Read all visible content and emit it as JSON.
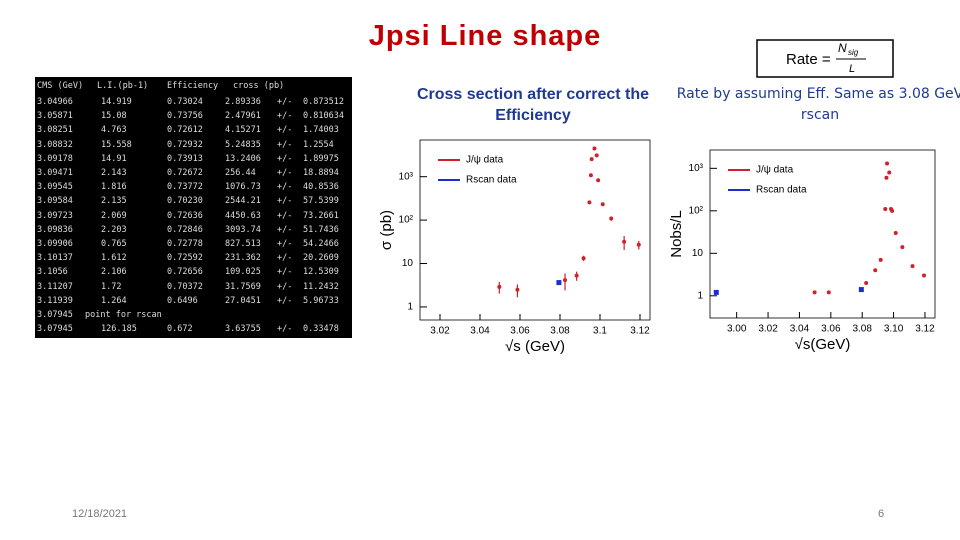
{
  "slide": {
    "title": "Jpsi Line shape",
    "date": "12/18/2021",
    "page": "6"
  },
  "formula": {
    "lhs": "Rate =",
    "numerator": "N",
    "numerator_sub": "sig",
    "denominator": "L"
  },
  "table": {
    "header": [
      "CMS (GeV)",
      "L.I.(pb-1)",
      "Efficiency",
      "cross (pb)"
    ],
    "rows": [
      [
        "3.04966",
        "14.919",
        "0.73024",
        "2.89336",
        "+/-",
        "0.873512"
      ],
      [
        "3.05871",
        "15.08",
        "0.73756",
        "2.47961",
        "+/-",
        "0.810634"
      ],
      [
        "3.08251",
        "4.763",
        "0.72612",
        "4.15271",
        "+/-",
        "1.74003"
      ],
      [
        "3.08832",
        "15.558",
        "0.72932",
        "5.24835",
        "+/-",
        "1.2554"
      ],
      [
        "3.09178",
        "14.91",
        "0.73913",
        "13.2406",
        "+/-",
        "1.89975"
      ],
      [
        "3.09471",
        "2.143",
        "0.72672",
        "256.44",
        "+/-",
        "18.8894"
      ],
      [
        "3.09545",
        "1.816",
        "0.73772",
        "1076.73",
        "+/-",
        "40.8536"
      ],
      [
        "3.09584",
        "2.135",
        "0.70230",
        "2544.21",
        "+/-",
        "57.5399"
      ],
      [
        "3.09723",
        "2.069",
        "0.72636",
        "4450.63",
        "+/-",
        "73.2661"
      ],
      [
        "3.09836",
        "2.203",
        "0.72846",
        "3093.74",
        "+/-",
        "51.7436"
      ],
      [
        "3.09906",
        "0.765",
        "0.72778",
        "827.513",
        "+/-",
        "54.2466"
      ],
      [
        "3.10137",
        "1.612",
        "0.72592",
        "231.362",
        "+/-",
        "20.2609"
      ],
      [
        "3.1056",
        "2.106",
        "0.72656",
        "109.025",
        "+/-",
        "12.5309"
      ],
      [
        "3.11207",
        "1.72",
        "0.70372",
        "31.7569",
        "+/-",
        "11.2432"
      ],
      [
        "3.11939",
        "1.264",
        "0.6496",
        "27.0451",
        "+/-",
        "5.96733"
      ],
      [
        "3.07945",
        "point for rscan"
      ],
      [
        "3.07945",
        "126.185",
        "0.672",
        "3.63755",
        "+/-",
        "0.33478"
      ]
    ]
  },
  "chart_data": [
    {
      "type": "scatter",
      "title": "Cross section after correct the Efficiency",
      "xlabel": "√s (GeV)",
      "ylabel": "σ (pb)",
      "log_y": true,
      "xlim": [
        3.01,
        3.125
      ],
      "xticks": [
        3.02,
        3.04,
        3.06,
        3.08,
        3.1,
        3.12
      ],
      "ylim": [
        0.5,
        7000
      ],
      "yticks": [
        1,
        10,
        {
          "value": 100,
          "label": "10²"
        },
        {
          "value": 1000,
          "label": "10³"
        }
      ],
      "series": [
        {
          "name": "J/ψ data",
          "color": "#d0202a",
          "marker": "circle",
          "x": [
            3.04966,
            3.05871,
            3.08251,
            3.08832,
            3.09178,
            3.09471,
            3.09545,
            3.09584,
            3.09723,
            3.09836,
            3.09906,
            3.10137,
            3.1056,
            3.11207,
            3.11939
          ],
          "values": [
            2.89336,
            2.47961,
            4.15271,
            5.24835,
            13.2406,
            256.44,
            1076.73,
            2544.21,
            4450.63,
            3093.74,
            827.513,
            231.362,
            109.025,
            31.7569,
            27.0451
          ],
          "errors": [
            0.873512,
            0.810634,
            1.74003,
            1.2554,
            1.89975,
            18.8894,
            40.8536,
            57.5399,
            73.2661,
            51.7436,
            54.2466,
            20.2609,
            12.5309,
            11.2432,
            5.96733
          ]
        },
        {
          "name": "Rscan data",
          "color": "#1a2fc8",
          "marker": "square",
          "x": [
            3.07945
          ],
          "values": [
            3.63755
          ],
          "errors": [
            0.33478
          ]
        }
      ]
    },
    {
      "type": "scatter",
      "title": "Rate by assuming Eff. Same as 3.08 GeV rscan",
      "xlabel": "√s(GeV)",
      "ylabel": "Nobs/L",
      "log_y": true,
      "xlim": [
        2.983,
        3.1264
      ],
      "xticks": [
        {
          "value": 3.0,
          "label": "3.00"
        },
        3.02,
        3.04,
        3.06,
        3.08,
        {
          "value": 3.1,
          "label": "3.10"
        },
        3.12
      ],
      "ylim": [
        0.3,
        2700
      ],
      "yticks": [
        1,
        10,
        {
          "value": 100,
          "label": "10²"
        },
        {
          "value": 1000,
          "label": "10³"
        }
      ],
      "series": [
        {
          "name": "J/ψ data",
          "color": "#d0202a",
          "marker": "circle",
          "x": [
            3.04966,
            3.05871,
            3.08251,
            3.08832,
            3.09178,
            3.09471,
            3.09545,
            3.09584,
            3.09723,
            3.09836,
            3.09906,
            3.10137,
            3.1056,
            3.11207,
            3.11939
          ],
          "values": [
            1.2,
            1.2,
            2.0,
            4,
            7,
            110,
            600,
            1300,
            800,
            110,
            100,
            30,
            14,
            5,
            3
          ]
        },
        {
          "name": "Rscan data",
          "color": "#1a2fc8",
          "marker": "square",
          "x": [
            2.987,
            3.07945
          ],
          "values": [
            1.2,
            1.4
          ]
        }
      ]
    }
  ]
}
